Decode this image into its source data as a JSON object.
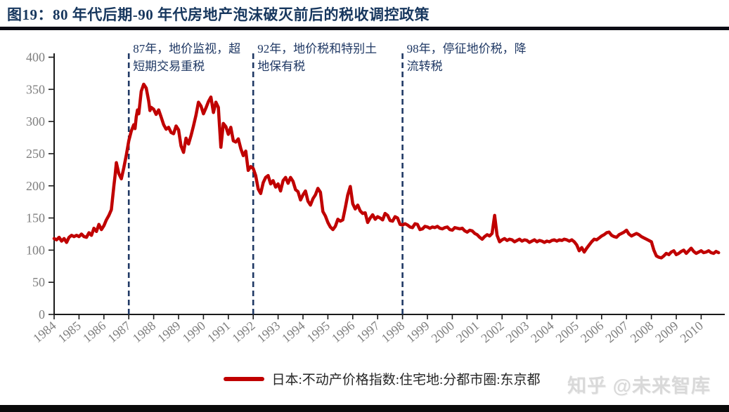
{
  "figure": {
    "title": "图19：80 年代后期-90 年代房地产泡沫破灭前后的税收调控政策",
    "watermark": "知乎 @未来智库"
  },
  "chart_data": {
    "type": "line",
    "title": "80 年代后期-90 年代房地产泡沫破灭前后的税收调控政策",
    "xlabel": "",
    "ylabel": "",
    "x_range": [
      1984,
      2010.8
    ],
    "ylim": [
      0,
      400
    ],
    "grid": false,
    "legend_position": "bottom-center",
    "axis_color": "#1a1a1a",
    "tick_label_color": "#7f7f7f",
    "y_ticks": [
      0,
      50,
      100,
      150,
      200,
      250,
      300,
      350,
      400
    ],
    "x_ticks": [
      1984,
      1985,
      1986,
      1987,
      1988,
      1989,
      1990,
      1991,
      1992,
      1993,
      1994,
      1995,
      1996,
      1997,
      1998,
      1999,
      2000,
      2001,
      2002,
      2003,
      2004,
      2005,
      2006,
      2007,
      2008,
      2009,
      2010
    ],
    "annotation_line_color": "#1F3864",
    "annotations": [
      {
        "year": 1987,
        "lines": [
          "87年，地价监视，超",
          "短期交易重税"
        ]
      },
      {
        "year": 1992,
        "lines": [
          "92年，地价税和特别土",
          "地保有税"
        ]
      },
      {
        "year": 1998,
        "lines": [
          "98年，停征地价税，降",
          "流转税"
        ]
      }
    ],
    "series": [
      {
        "name": "日本:不动产价格指数:住宅地:分都市圈:东京都",
        "color": "#C00000",
        "points": [
          [
            1984.0,
            118
          ],
          [
            1984.1,
            116
          ],
          [
            1984.2,
            120
          ],
          [
            1984.3,
            114
          ],
          [
            1984.4,
            118
          ],
          [
            1984.5,
            112
          ],
          [
            1984.6,
            120
          ],
          [
            1984.7,
            123
          ],
          [
            1984.8,
            121
          ],
          [
            1984.9,
            123
          ],
          [
            1985.0,
            121
          ],
          [
            1985.1,
            125
          ],
          [
            1985.2,
            121
          ],
          [
            1985.3,
            120
          ],
          [
            1985.4,
            127
          ],
          [
            1985.5,
            123
          ],
          [
            1985.6,
            134
          ],
          [
            1985.7,
            129
          ],
          [
            1985.8,
            140
          ],
          [
            1985.9,
            132
          ],
          [
            1986.0,
            138
          ],
          [
            1986.1,
            147
          ],
          [
            1986.2,
            154
          ],
          [
            1986.3,
            163
          ],
          [
            1986.4,
            200
          ],
          [
            1986.45,
            216
          ],
          [
            1986.5,
            236
          ],
          [
            1986.6,
            219
          ],
          [
            1986.7,
            211
          ],
          [
            1986.8,
            228
          ],
          [
            1986.9,
            248
          ],
          [
            1987.0,
            270
          ],
          [
            1987.1,
            285
          ],
          [
            1987.2,
            295
          ],
          [
            1987.25,
            289
          ],
          [
            1987.3,
            307
          ],
          [
            1987.35,
            318
          ],
          [
            1987.4,
            312
          ],
          [
            1987.5,
            347
          ],
          [
            1987.6,
            358
          ],
          [
            1987.7,
            352
          ],
          [
            1987.8,
            332
          ],
          [
            1987.85,
            317
          ],
          [
            1987.9,
            322
          ],
          [
            1988.0,
            319
          ],
          [
            1988.1,
            311
          ],
          [
            1988.2,
            318
          ],
          [
            1988.3,
            307
          ],
          [
            1988.4,
            295
          ],
          [
            1988.5,
            288
          ],
          [
            1988.6,
            291
          ],
          [
            1988.7,
            283
          ],
          [
            1988.8,
            281
          ],
          [
            1988.9,
            293
          ],
          [
            1989.0,
            287
          ],
          [
            1989.1,
            262
          ],
          [
            1989.2,
            252
          ],
          [
            1989.3,
            274
          ],
          [
            1989.4,
            265
          ],
          [
            1989.5,
            278
          ],
          [
            1989.6,
            293
          ],
          [
            1989.7,
            310
          ],
          [
            1989.8,
            330
          ],
          [
            1989.9,
            324
          ],
          [
            1990.0,
            312
          ],
          [
            1990.1,
            321
          ],
          [
            1990.2,
            331
          ],
          [
            1990.3,
            338
          ],
          [
            1990.4,
            314
          ],
          [
            1990.5,
            330
          ],
          [
            1990.6,
            322
          ],
          [
            1990.7,
            260
          ],
          [
            1990.8,
            297
          ],
          [
            1990.9,
            292
          ],
          [
            1991.0,
            280
          ],
          [
            1991.1,
            291
          ],
          [
            1991.2,
            270
          ],
          [
            1991.3,
            268
          ],
          [
            1991.4,
            273
          ],
          [
            1991.5,
            258
          ],
          [
            1991.6,
            247
          ],
          [
            1991.7,
            254
          ],
          [
            1991.8,
            224
          ],
          [
            1991.9,
            230
          ],
          [
            1992.0,
            227
          ],
          [
            1992.1,
            216
          ],
          [
            1992.2,
            195
          ],
          [
            1992.3,
            188
          ],
          [
            1992.4,
            205
          ],
          [
            1992.5,
            213
          ],
          [
            1992.6,
            216
          ],
          [
            1992.7,
            203
          ],
          [
            1992.8,
            208
          ],
          [
            1992.9,
            198
          ],
          [
            1993.0,
            203
          ],
          [
            1993.1,
            192
          ],
          [
            1993.2,
            208
          ],
          [
            1993.3,
            213
          ],
          [
            1993.4,
            204
          ],
          [
            1993.5,
            213
          ],
          [
            1993.6,
            207
          ],
          [
            1993.7,
            194
          ],
          [
            1993.8,
            191
          ],
          [
            1993.9,
            178
          ],
          [
            1994.0,
            186
          ],
          [
            1994.1,
            192
          ],
          [
            1994.2,
            176
          ],
          [
            1994.3,
            170
          ],
          [
            1994.4,
            180
          ],
          [
            1994.5,
            186
          ],
          [
            1994.6,
            196
          ],
          [
            1994.7,
            190
          ],
          [
            1994.8,
            160
          ],
          [
            1994.9,
            153
          ],
          [
            1995.0,
            143
          ],
          [
            1995.1,
            136
          ],
          [
            1995.2,
            132
          ],
          [
            1995.3,
            137
          ],
          [
            1995.4,
            148
          ],
          [
            1995.5,
            145
          ],
          [
            1995.6,
            147
          ],
          [
            1995.7,
            166
          ],
          [
            1995.8,
            186
          ],
          [
            1995.9,
            199
          ],
          [
            1996.0,
            172
          ],
          [
            1996.1,
            164
          ],
          [
            1996.2,
            170
          ],
          [
            1996.3,
            161
          ],
          [
            1996.4,
            157
          ],
          [
            1996.5,
            158
          ],
          [
            1996.6,
            143
          ],
          [
            1996.7,
            150
          ],
          [
            1996.8,
            155
          ],
          [
            1996.9,
            148
          ],
          [
            1997.0,
            152
          ],
          [
            1997.1,
            150
          ],
          [
            1997.2,
            147
          ],
          [
            1997.3,
            157
          ],
          [
            1997.4,
            154
          ],
          [
            1997.5,
            146
          ],
          [
            1997.6,
            145
          ],
          [
            1997.7,
            152
          ],
          [
            1997.8,
            150
          ],
          [
            1997.9,
            140
          ],
          [
            1998.0,
            139
          ],
          [
            1998.1,
            141
          ],
          [
            1998.2,
            139
          ],
          [
            1998.3,
            136
          ],
          [
            1998.4,
            135
          ],
          [
            1998.5,
            141
          ],
          [
            1998.6,
            140
          ],
          [
            1998.7,
            132
          ],
          [
            1998.8,
            133
          ],
          [
            1998.9,
            137
          ],
          [
            1999.0,
            136
          ],
          [
            1999.1,
            134
          ],
          [
            1999.2,
            136
          ],
          [
            1999.3,
            135
          ],
          [
            1999.4,
            137
          ],
          [
            1999.5,
            134
          ],
          [
            1999.6,
            133
          ],
          [
            1999.7,
            135
          ],
          [
            1999.8,
            136
          ],
          [
            1999.9,
            132
          ],
          [
            2000.0,
            131
          ],
          [
            2000.1,
            135
          ],
          [
            2000.2,
            134
          ],
          [
            2000.3,
            133
          ],
          [
            2000.4,
            134
          ],
          [
            2000.5,
            130
          ],
          [
            2000.6,
            128
          ],
          [
            2000.7,
            131
          ],
          [
            2000.8,
            130
          ],
          [
            2000.9,
            126
          ],
          [
            2001.0,
            124
          ],
          [
            2001.1,
            120
          ],
          [
            2001.2,
            117
          ],
          [
            2001.3,
            121
          ],
          [
            2001.4,
            124
          ],
          [
            2001.5,
            122
          ],
          [
            2001.6,
            126
          ],
          [
            2001.7,
            154
          ],
          [
            2001.8,
            123
          ],
          [
            2001.9,
            113
          ],
          [
            2002.0,
            116
          ],
          [
            2002.1,
            118
          ],
          [
            2002.2,
            115
          ],
          [
            2002.3,
            117
          ],
          [
            2002.4,
            116
          ],
          [
            2002.5,
            113
          ],
          [
            2002.6,
            115
          ],
          [
            2002.7,
            117
          ],
          [
            2002.8,
            114
          ],
          [
            2002.9,
            116
          ],
          [
            2003.0,
            115
          ],
          [
            2003.1,
            112
          ],
          [
            2003.2,
            114
          ],
          [
            2003.3,
            116
          ],
          [
            2003.4,
            113
          ],
          [
            2003.5,
            115
          ],
          [
            2003.6,
            114
          ],
          [
            2003.7,
            112
          ],
          [
            2003.8,
            114
          ],
          [
            2003.9,
            113
          ],
          [
            2004.0,
            115
          ],
          [
            2004.1,
            116
          ],
          [
            2004.2,
            114
          ],
          [
            2004.3,
            116
          ],
          [
            2004.4,
            115
          ],
          [
            2004.5,
            117
          ],
          [
            2004.6,
            116
          ],
          [
            2004.7,
            114
          ],
          [
            2004.8,
            116
          ],
          [
            2004.9,
            113
          ],
          [
            2005.0,
            108
          ],
          [
            2005.1,
            99
          ],
          [
            2005.2,
            104
          ],
          [
            2005.3,
            97
          ],
          [
            2005.4,
            103
          ],
          [
            2005.5,
            108
          ],
          [
            2005.6,
            113
          ],
          [
            2005.7,
            117
          ],
          [
            2005.8,
            116
          ],
          [
            2005.9,
            119
          ],
          [
            2006.0,
            122
          ],
          [
            2006.1,
            124
          ],
          [
            2006.2,
            127
          ],
          [
            2006.3,
            128
          ],
          [
            2006.4,
            123
          ],
          [
            2006.5,
            121
          ],
          [
            2006.6,
            120
          ],
          [
            2006.7,
            124
          ],
          [
            2006.8,
            126
          ],
          [
            2006.9,
            128
          ],
          [
            2007.0,
            131
          ],
          [
            2007.1,
            125
          ],
          [
            2007.2,
            122
          ],
          [
            2007.3,
            124
          ],
          [
            2007.4,
            126
          ],
          [
            2007.5,
            124
          ],
          [
            2007.6,
            121
          ],
          [
            2007.7,
            119
          ],
          [
            2007.8,
            117
          ],
          [
            2007.9,
            115
          ],
          [
            2008.0,
            113
          ],
          [
            2008.1,
            100
          ],
          [
            2008.2,
            91
          ],
          [
            2008.3,
            89
          ],
          [
            2008.4,
            88
          ],
          [
            2008.5,
            91
          ],
          [
            2008.6,
            95
          ],
          [
            2008.7,
            93
          ],
          [
            2008.8,
            97
          ],
          [
            2008.9,
            99
          ],
          [
            2009.0,
            93
          ],
          [
            2009.1,
            95
          ],
          [
            2009.2,
            98
          ],
          [
            2009.3,
            100
          ],
          [
            2009.4,
            95
          ],
          [
            2009.5,
            99
          ],
          [
            2009.6,
            103
          ],
          [
            2009.7,
            98
          ],
          [
            2009.8,
            95
          ],
          [
            2009.9,
            97
          ],
          [
            2010.0,
            99
          ],
          [
            2010.1,
            96
          ],
          [
            2010.2,
            97
          ],
          [
            2010.3,
            99
          ],
          [
            2010.4,
            96
          ],
          [
            2010.5,
            95
          ],
          [
            2010.6,
            98
          ],
          [
            2010.7,
            96
          ]
        ]
      }
    ]
  }
}
